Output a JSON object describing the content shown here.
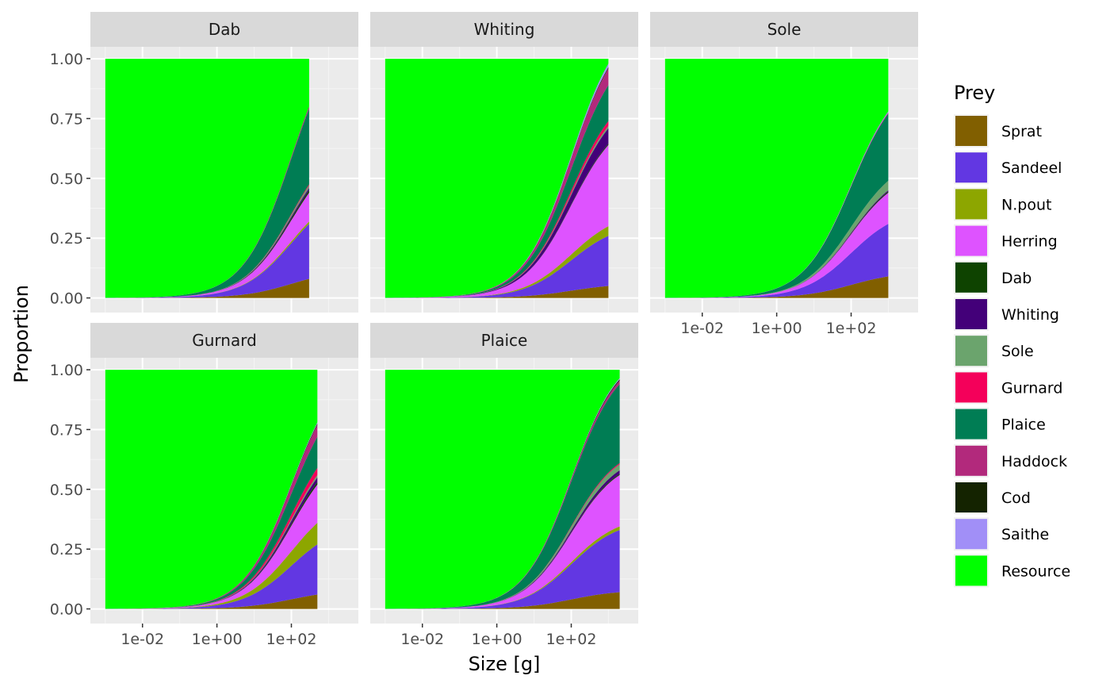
{
  "chart_data": {
    "type": "area",
    "stacked": true,
    "facets": [
      "Dab",
      "Whiting",
      "Sole",
      "Gurnard",
      "Plaice"
    ],
    "xlabel": "Size [g]",
    "ylabel": "Proportion",
    "x_scale": "log10",
    "x_ticks": [
      "1e-02",
      "1e+00",
      "1e+02"
    ],
    "y_ticks": [
      "0.00",
      "0.25",
      "0.50",
      "0.75",
      "1.00"
    ],
    "ylim": [
      0,
      1
    ],
    "grid": true,
    "legend": {
      "title": "Prey",
      "position": "right",
      "entries": [
        {
          "name": "Sprat",
          "color": "#815f00"
        },
        {
          "name": "Sandeel",
          "color": "#6237e2"
        },
        {
          "name": "N.pout",
          "color": "#8da600"
        },
        {
          "name": "Herring",
          "color": "#de53ff"
        },
        {
          "name": "Dab",
          "color": "#0e4300"
        },
        {
          "name": "Whiting",
          "color": "#430079"
        },
        {
          "name": "Sole",
          "color": "#6ba46d"
        },
        {
          "name": "Gurnard",
          "color": "#f4005a"
        },
        {
          "name": "Plaice",
          "color": "#007d54"
        },
        {
          "name": "Haddock",
          "color": "#b2297c"
        },
        {
          "name": "Cod",
          "color": "#142300"
        },
        {
          "name": "Saithe",
          "color": "#a18ff7"
        },
        {
          "name": "Resource",
          "color": "#00ff00"
        }
      ]
    },
    "panels": [
      {
        "predator": "Dab",
        "x_range_g": [
          0.001,
          300
        ],
        "cumulative_at_max_size": {
          "Sprat": 0.08,
          "Sandeel": 0.31,
          "N.pout": 0.32,
          "Herring": 0.44,
          "Dab": 0.45,
          "Whiting": 0.46,
          "Sole": 0.47,
          "Gurnard": 0.475,
          "Plaice": 0.79,
          "Haddock": 0.8,
          "Cod": 0.8,
          "Saithe": 0.8,
          "Resource": 1.0
        }
      },
      {
        "predator": "Whiting",
        "x_range_g": [
          0.001,
          1000
        ],
        "cumulative_at_max_size": {
          "Sprat": 0.05,
          "Sandeel": 0.26,
          "N.pout": 0.3,
          "Herring": 0.64,
          "Dab": 0.645,
          "Whiting": 0.71,
          "Sole": 0.72,
          "Gurnard": 0.74,
          "Plaice": 0.89,
          "Haddock": 0.96,
          "Cod": 0.965,
          "Saithe": 0.98,
          "Resource": 1.0
        }
      },
      {
        "predator": "Sole",
        "x_range_g": [
          0.001,
          1000
        ],
        "cumulative_at_max_size": {
          "Sprat": 0.09,
          "Sandeel": 0.31,
          "N.pout": 0.31,
          "Herring": 0.44,
          "Dab": 0.445,
          "Whiting": 0.45,
          "Sole": 0.49,
          "Gurnard": 0.49,
          "Plaice": 0.77,
          "Haddock": 0.775,
          "Cod": 0.775,
          "Saithe": 0.78,
          "Resource": 1.0
        }
      },
      {
        "predator": "Gurnard",
        "x_range_g": [
          0.001,
          500
        ],
        "cumulative_at_max_size": {
          "Sprat": 0.06,
          "Sandeel": 0.27,
          "N.pout": 0.36,
          "Herring": 0.52,
          "Dab": 0.53,
          "Whiting": 0.55,
          "Sole": 0.56,
          "Gurnard": 0.59,
          "Plaice": 0.72,
          "Haddock": 0.77,
          "Cod": 0.775,
          "Saithe": 0.78,
          "Resource": 1.0
        }
      },
      {
        "predator": "Plaice",
        "x_range_g": [
          0.001,
          2000
        ],
        "cumulative_at_max_size": {
          "Sprat": 0.07,
          "Sandeel": 0.33,
          "N.pout": 0.345,
          "Herring": 0.56,
          "Dab": 0.565,
          "Whiting": 0.58,
          "Sole": 0.605,
          "Gurnard": 0.61,
          "Plaice": 0.94,
          "Haddock": 0.955,
          "Cod": 0.96,
          "Saithe": 0.965,
          "Resource": 1.0
        }
      }
    ]
  }
}
